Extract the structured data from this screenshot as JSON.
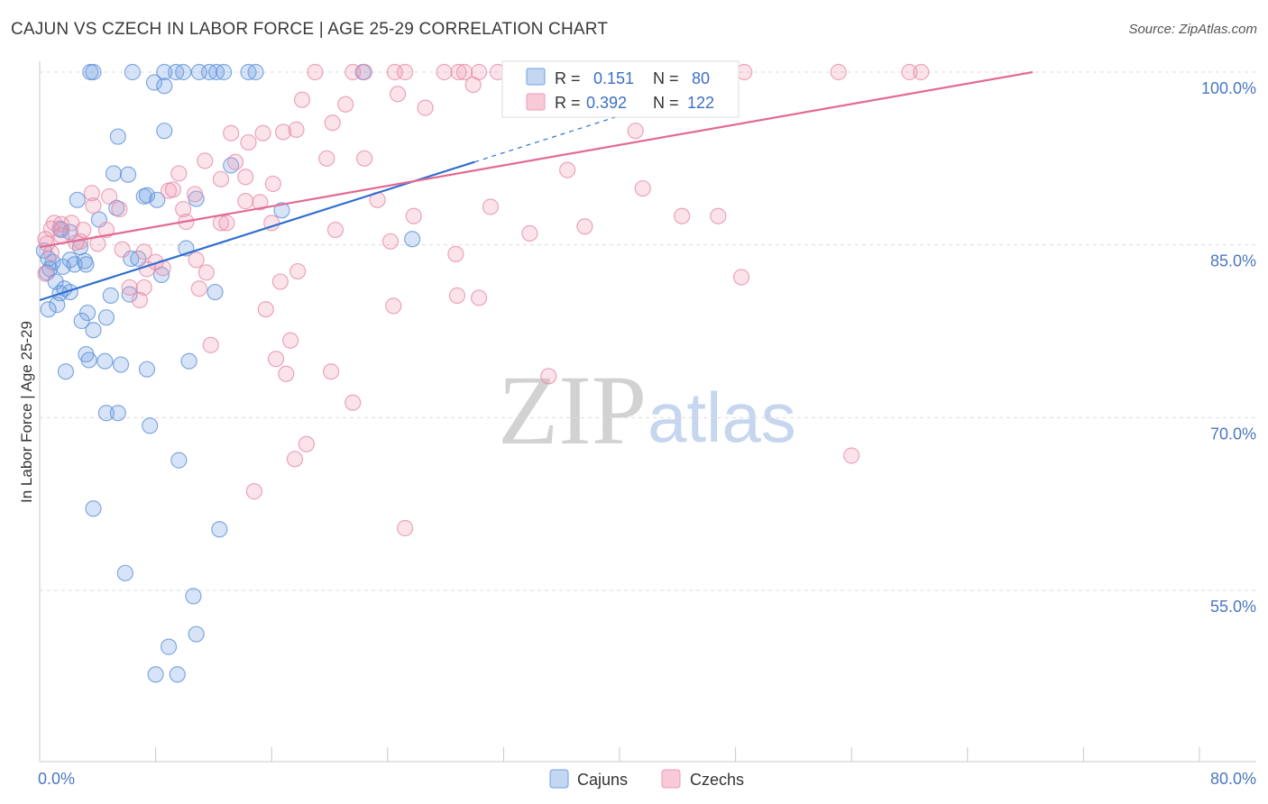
{
  "header": {
    "title": "CAJUN VS CZECH IN LABOR FORCE | AGE 25-29 CORRELATION CHART",
    "source": "Source: ZipAtlas.com"
  },
  "watermark": {
    "zip": "ZIP",
    "atlas": "atlas"
  },
  "chart_data": {
    "type": "scatter",
    "title": "CAJUN VS CZECH IN LABOR FORCE | AGE 25-29 CORRELATION CHART",
    "xlabel": "",
    "ylabel": "In Labor Force | Age 25-29",
    "xlim": [
      0,
      80
    ],
    "ylim": [
      40,
      101.5
    ],
    "x_tick_labels": [
      "0.0%",
      "80.0%"
    ],
    "y_ticks": [
      100,
      85,
      70,
      55
    ],
    "y_tick_labels": [
      "100.0%",
      "85.0%",
      "70.0%",
      "55.0%"
    ],
    "grid": true,
    "legend_position": "bottom-center",
    "colors": {
      "cajuns": "#6f9fe2",
      "czechs": "#ef9ab5",
      "cajuns_line": "#2f6fd0",
      "czechs_line": "#e26a93"
    },
    "stats": [
      {
        "series": "Cajuns",
        "r_label": "R =",
        "r": "0.151",
        "n_label": "N =",
        "n": "80"
      },
      {
        "series": "Czechs",
        "r_label": "R =",
        "r": "0.392",
        "n_label": "N =",
        "n": "122"
      }
    ],
    "series": [
      {
        "name": "Cajuns",
        "trendline": {
          "x0": 0,
          "y0": 80.2,
          "x1": 30,
          "y1": 92.2,
          "dashed_to_x": 41,
          "dashed_to_y": 96.6
        },
        "points": [
          [
            3.5,
            100
          ],
          [
            3.7,
            100
          ],
          [
            6.4,
            100
          ],
          [
            8.6,
            100
          ],
          [
            9.4,
            100
          ],
          [
            9.9,
            100
          ],
          [
            11,
            100
          ],
          [
            11.7,
            100
          ],
          [
            12.2,
            100
          ],
          [
            12.7,
            100
          ],
          [
            14.4,
            100
          ],
          [
            14.9,
            100
          ],
          [
            22.3,
            100
          ],
          [
            7.9,
            99.1
          ],
          [
            8.6,
            98.8
          ],
          [
            5.4,
            94.4
          ],
          [
            8.6,
            94.9
          ],
          [
            13.2,
            91.9
          ],
          [
            5.1,
            91.2
          ],
          [
            6.1,
            91.1
          ],
          [
            7.2,
            89.2
          ],
          [
            7.4,
            89.3
          ],
          [
            8.1,
            88.9
          ],
          [
            10.8,
            89
          ],
          [
            2.6,
            88.9
          ],
          [
            5.3,
            88.2
          ],
          [
            16.7,
            88
          ],
          [
            4.1,
            87.2
          ],
          [
            1.5,
            86.3
          ],
          [
            2.1,
            86.1
          ],
          [
            1.4,
            86.4
          ],
          [
            2.8,
            84.8
          ],
          [
            10.1,
            84.7
          ],
          [
            25.7,
            85.5
          ],
          [
            0.3,
            84.5
          ],
          [
            0.6,
            83.8
          ],
          [
            0.9,
            83.5
          ],
          [
            2.1,
            83.7
          ],
          [
            3.1,
            83.6
          ],
          [
            6.3,
            83.8
          ],
          [
            6.8,
            83.8
          ],
          [
            0.7,
            82.9
          ],
          [
            2.4,
            83.3
          ],
          [
            1.6,
            83.1
          ],
          [
            3.2,
            83.3
          ],
          [
            0.5,
            82.6
          ],
          [
            1.1,
            81.8
          ],
          [
            8.4,
            82.4
          ],
          [
            1.7,
            81.2
          ],
          [
            1.4,
            80.8
          ],
          [
            2.1,
            80.9
          ],
          [
            6.2,
            80.7
          ],
          [
            4.9,
            80.6
          ],
          [
            12.1,
            80.9
          ],
          [
            1.2,
            79.8
          ],
          [
            0.6,
            79.4
          ],
          [
            3.3,
            79.1
          ],
          [
            4.6,
            78.7
          ],
          [
            2.9,
            78.4
          ],
          [
            3.7,
            77.6
          ],
          [
            3.2,
            75.5
          ],
          [
            3.4,
            75
          ],
          [
            4.5,
            74.9
          ],
          [
            5.6,
            74.6
          ],
          [
            7.4,
            74.2
          ],
          [
            10.3,
            74.9
          ],
          [
            1.8,
            74
          ],
          [
            4.6,
            70.4
          ],
          [
            5.4,
            70.4
          ],
          [
            7.6,
            69.3
          ],
          [
            9.6,
            66.3
          ],
          [
            3.7,
            62.1
          ],
          [
            12.4,
            60.3
          ],
          [
            5.9,
            56.5
          ],
          [
            10.6,
            54.5
          ],
          [
            10.8,
            51.2
          ],
          [
            8.9,
            50.1
          ],
          [
            8.0,
            47.7
          ],
          [
            9.5,
            47.7
          ]
        ]
      },
      {
        "name": "Czechs",
        "trendline": {
          "x0": 0,
          "y0": 84.8,
          "x1": 68.5,
          "y1": 100
        },
        "points": [
          [
            19,
            100
          ],
          [
            21.6,
            100
          ],
          [
            22.4,
            100
          ],
          [
            24.5,
            100
          ],
          [
            25.2,
            100
          ],
          [
            27.9,
            100
          ],
          [
            28.9,
            100
          ],
          [
            29.3,
            100
          ],
          [
            30.3,
            100
          ],
          [
            31.6,
            100
          ],
          [
            33.1,
            100
          ],
          [
            34.2,
            100
          ],
          [
            36.8,
            100
          ],
          [
            38.2,
            100
          ],
          [
            39.5,
            100
          ],
          [
            40.7,
            100
          ],
          [
            41.9,
            100
          ],
          [
            43.6,
            100
          ],
          [
            44.9,
            100
          ],
          [
            45.8,
            100
          ],
          [
            46.7,
            100
          ],
          [
            48.6,
            100
          ],
          [
            55.1,
            100
          ],
          [
            60,
            100
          ],
          [
            60.8,
            100
          ],
          [
            29.9,
            98.9
          ],
          [
            24.7,
            98.1
          ],
          [
            18.1,
            97.6
          ],
          [
            26.6,
            96.9
          ],
          [
            21.1,
            97.2
          ],
          [
            20.2,
            95.6
          ],
          [
            17.7,
            95
          ],
          [
            13.2,
            94.7
          ],
          [
            15.4,
            94.7
          ],
          [
            16.8,
            94.8
          ],
          [
            41.1,
            94.9
          ],
          [
            14.4,
            93.9
          ],
          [
            19.8,
            92.5
          ],
          [
            22.4,
            92.5
          ],
          [
            11.4,
            92.3
          ],
          [
            13.5,
            92.2
          ],
          [
            36.4,
            91.5
          ],
          [
            9.6,
            91.2
          ],
          [
            14.2,
            90.9
          ],
          [
            12.5,
            90.7
          ],
          [
            16.1,
            90.3
          ],
          [
            8.9,
            89.7
          ],
          [
            9.2,
            89.8
          ],
          [
            41.6,
            89.9
          ],
          [
            3.6,
            89.5
          ],
          [
            4.8,
            89.2
          ],
          [
            10.7,
            89.4
          ],
          [
            14.2,
            88.8
          ],
          [
            15.2,
            88.7
          ],
          [
            23.3,
            88.9
          ],
          [
            31.1,
            88.3
          ],
          [
            5.5,
            88.1
          ],
          [
            3.7,
            88.4
          ],
          [
            9.9,
            88.1
          ],
          [
            25.8,
            87.5
          ],
          [
            44.3,
            87.5
          ],
          [
            46.8,
            87.5
          ],
          [
            10.1,
            87
          ],
          [
            12.5,
            86.9
          ],
          [
            12.9,
            86.9
          ],
          [
            16,
            86.9
          ],
          [
            1,
            86.9
          ],
          [
            1.5,
            86.8
          ],
          [
            2.2,
            86.9
          ],
          [
            0.8,
            86.4
          ],
          [
            1.5,
            85.8
          ],
          [
            3,
            86.3
          ],
          [
            2.8,
            85.3
          ],
          [
            4.6,
            86.3
          ],
          [
            20.4,
            86.3
          ],
          [
            33.8,
            86
          ],
          [
            37.6,
            86.6
          ],
          [
            0.4,
            85.5
          ],
          [
            2.5,
            85.2
          ],
          [
            0.5,
            85.1
          ],
          [
            4,
            85.1
          ],
          [
            5.7,
            84.6
          ],
          [
            7.2,
            84.4
          ],
          [
            24.2,
            85.3
          ],
          [
            28.7,
            84.2
          ],
          [
            0.8,
            84.3
          ],
          [
            10.8,
            83.7
          ],
          [
            8,
            83.5
          ],
          [
            8.5,
            83
          ],
          [
            7.4,
            82.9
          ],
          [
            17.8,
            82.7
          ],
          [
            11.5,
            82.6
          ],
          [
            0.4,
            82.5
          ],
          [
            48.4,
            82.2
          ],
          [
            16.6,
            81.8
          ],
          [
            6.2,
            81.3
          ],
          [
            11,
            81.2
          ],
          [
            7.2,
            81.3
          ],
          [
            28.8,
            80.6
          ],
          [
            30.3,
            80.4
          ],
          [
            6.9,
            80.2
          ],
          [
            24.4,
            79.7
          ],
          [
            15.6,
            79.4
          ],
          [
            11.8,
            76.3
          ],
          [
            17.3,
            76.7
          ],
          [
            16.3,
            75.1
          ],
          [
            20.1,
            74
          ],
          [
            17,
            73.8
          ],
          [
            35.1,
            73.6
          ],
          [
            21.6,
            71.3
          ],
          [
            18.4,
            67.7
          ],
          [
            17.6,
            66.4
          ],
          [
            56,
            66.7
          ],
          [
            14.8,
            63.6
          ],
          [
            25.2,
            60.4
          ]
        ]
      }
    ]
  }
}
